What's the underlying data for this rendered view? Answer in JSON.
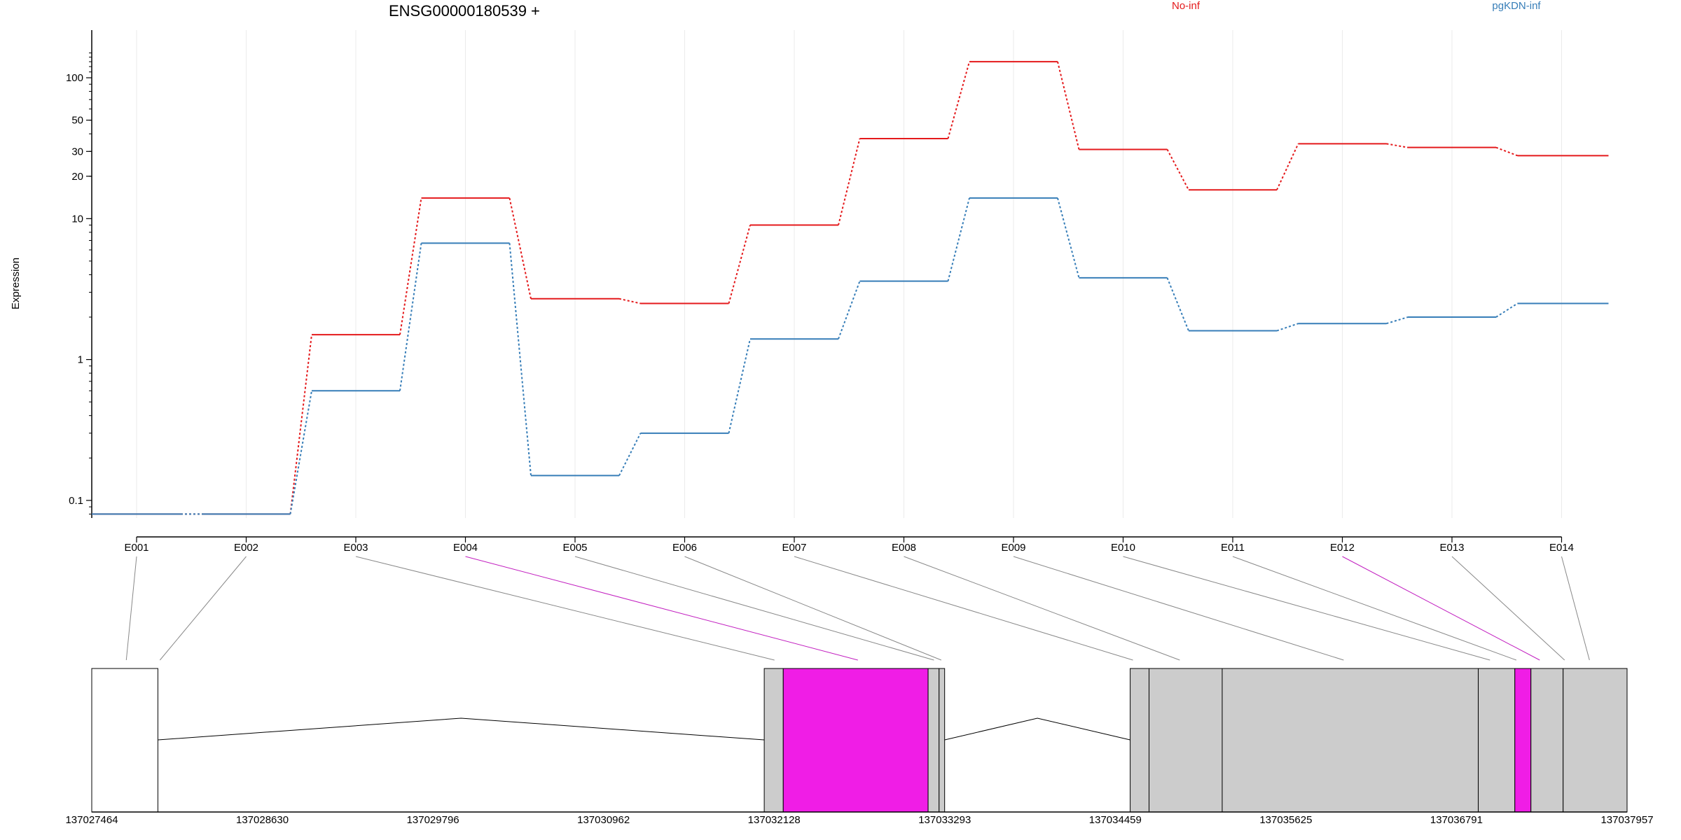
{
  "chart_data": {
    "type": "line",
    "title": "ENSG00000180539 +",
    "ylabel": "Expression",
    "yscale": "log",
    "ylim": [
      0.075,
      160
    ],
    "y_ticks": [
      {
        "value": 0.1,
        "label": "0.1"
      },
      {
        "value": 1,
        "label": "1"
      },
      {
        "value": 10,
        "label": "10"
      },
      {
        "value": 20,
        "label": "20"
      },
      {
        "value": 30,
        "label": "30"
      },
      {
        "value": 50,
        "label": "50"
      },
      {
        "value": 100,
        "label": "100"
      }
    ],
    "grid": true,
    "legend_position": "top",
    "categories": [
      "E001",
      "E002",
      "E003",
      "E004",
      "E005",
      "E006",
      "E007",
      "E008",
      "E009",
      "E010",
      "E011",
      "E012",
      "E013",
      "E014"
    ],
    "series": [
      {
        "name": "No-inf",
        "color": "#e41a1c",
        "values": [
          0.08,
          0.08,
          1.5,
          14,
          2.7,
          2.5,
          9,
          37,
          130,
          31,
          16,
          34,
          32,
          28
        ]
      },
      {
        "name": "pgKDN-inf",
        "color": "#377eb8",
        "values": [
          0.08,
          0.08,
          0.6,
          6.7,
          0.15,
          0.3,
          1.4,
          3.6,
          14,
          3.8,
          1.6,
          1.8,
          2.0,
          2.5
        ]
      }
    ],
    "gene_model": {
      "coordinate_ticks": [
        "137027464",
        "137028630",
        "137029796",
        "137030962",
        "137032128",
        "137033293",
        "137034459",
        "137035625",
        "137036791",
        "137037957"
      ],
      "coordinate_range": [
        137027464,
        137037957
      ],
      "exons": [
        {
          "id": "E001",
          "start": 137027464,
          "end": 137027916,
          "color": "#ffffff",
          "highlight": false
        },
        {
          "id": "E002",
          "start": 137032060,
          "end": 137032190,
          "color": "#cccccc",
          "highlight": false
        },
        {
          "id": "E004",
          "start": 137032190,
          "end": 137033180,
          "color": "#f01de6",
          "highlight": true
        },
        {
          "id": "E005",
          "start": 137033180,
          "end": 137033255,
          "color": "#cccccc",
          "highlight": false
        },
        {
          "id": "E006",
          "start": 137033255,
          "end": 137033293,
          "color": "#cccccc",
          "highlight": false
        },
        {
          "id": "E008",
          "start": 137034561,
          "end": 137034690,
          "color": "#cccccc",
          "highlight": false
        },
        {
          "id": "E009",
          "start": 137034690,
          "end": 137035190,
          "color": "#cccccc",
          "highlight": false
        },
        {
          "id": "E010",
          "start": 137035190,
          "end": 137036940,
          "color": "#cccccc",
          "highlight": false
        },
        {
          "id": "E011",
          "start": 137036940,
          "end": 137037190,
          "color": "#cccccc",
          "highlight": false
        },
        {
          "id": "E012",
          "start": 137037190,
          "end": 137037300,
          "color": "#f01de6",
          "highlight": true
        },
        {
          "id": "E013",
          "start": 137037300,
          "end": 137037520,
          "color": "#cccccc",
          "highlight": false
        },
        {
          "id": "E014",
          "start": 137037520,
          "end": 137037957,
          "color": "#cccccc",
          "highlight": false
        }
      ],
      "introns": [
        {
          "from": 137027916,
          "to": 137032060
        },
        {
          "from": 137033293,
          "to": 137034561
        }
      ],
      "connectors": [
        {
          "exon": "E001",
          "target": 137027700,
          "highlight": false
        },
        {
          "exon": "E002",
          "target": 137027930,
          "highlight": false
        },
        {
          "exon": "E003",
          "target": 137032130,
          "highlight": false
        },
        {
          "exon": "E004",
          "target": 137032700,
          "highlight": true
        },
        {
          "exon": "E005",
          "target": 137033220,
          "highlight": false
        },
        {
          "exon": "E006",
          "target": 137033270,
          "highlight": false
        },
        {
          "exon": "E007",
          "target": 137034580,
          "highlight": false
        },
        {
          "exon": "E008",
          "target": 137034900,
          "highlight": false
        },
        {
          "exon": "E009",
          "target": 137036020,
          "highlight": false
        },
        {
          "exon": "E010",
          "target": 137037020,
          "highlight": false
        },
        {
          "exon": "E011",
          "target": 137037200,
          "highlight": false
        },
        {
          "exon": "E012",
          "target": 137037360,
          "highlight": true
        },
        {
          "exon": "E013",
          "target": 137037530,
          "highlight": false
        },
        {
          "exon": "E014",
          "target": 137037700,
          "highlight": false
        }
      ]
    }
  }
}
